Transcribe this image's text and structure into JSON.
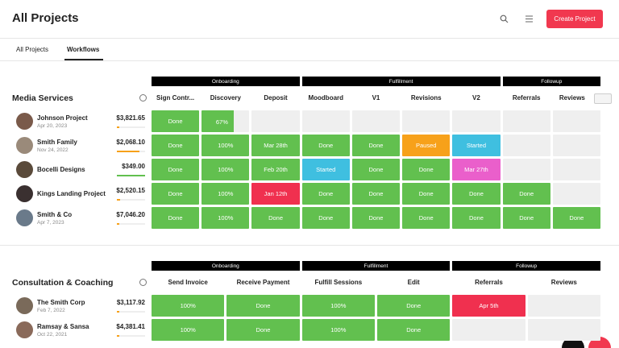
{
  "header": {
    "title": "All Projects",
    "button": "Create Project"
  },
  "tabs": [
    "All Projects",
    "Workflows"
  ],
  "active_tab": 1,
  "sections": [
    {
      "title": "Media Services",
      "groups": [
        {
          "label": "Onboarding",
          "span": 3
        },
        {
          "label": "Fulfillment",
          "span": 4
        },
        {
          "label": "Followup",
          "span": 2
        }
      ],
      "columns": [
        "Sign Contr...",
        "Discovery",
        "Deposit",
        "Moodboard",
        "V1",
        "Revisions",
        "V2",
        "Referrals",
        "Reviews"
      ],
      "rows": [
        {
          "name": "Johnson Project",
          "date": "Apr 20, 2023",
          "amount": "$3,821.65",
          "progress": 8,
          "bar": "orange",
          "cells": [
            {
              "text": "Done",
              "status": "done"
            },
            {
              "text": "67%",
              "value": 67,
              "status": "partial"
            },
            {
              "status": "empty"
            },
            {
              "status": "empty"
            },
            {
              "status": "empty"
            },
            {
              "status": "empty"
            },
            {
              "status": "empty"
            },
            {
              "status": "empty"
            },
            {
              "status": "empty"
            }
          ]
        },
        {
          "name": "Smith Family",
          "date": "Nov 24, 2022",
          "amount": "$2,068.10",
          "progress": 80,
          "bar": "orange",
          "cells": [
            {
              "text": "Done",
              "status": "done"
            },
            {
              "text": "100%",
              "status": "done"
            },
            {
              "text": "Mar 28th",
              "status": "done"
            },
            {
              "text": "Done",
              "status": "done"
            },
            {
              "text": "Done",
              "status": "done"
            },
            {
              "text": "Paused",
              "status": "paused"
            },
            {
              "text": "Started",
              "status": "started"
            },
            {
              "status": "empty"
            },
            {
              "status": "empty"
            }
          ]
        },
        {
          "name": "Bocelli Designs",
          "date": null,
          "amount": "$349.00",
          "progress": 100,
          "bar": "green",
          "cells": [
            {
              "text": "Done",
              "status": "done"
            },
            {
              "text": "100%",
              "status": "done"
            },
            {
              "text": "Feb 20th",
              "status": "done"
            },
            {
              "text": "Started",
              "status": "started"
            },
            {
              "text": "Done",
              "status": "done"
            },
            {
              "text": "Done",
              "status": "done"
            },
            {
              "text": "Mar 27th",
              "status": "scheduled"
            },
            {
              "status": "empty"
            },
            {
              "status": "empty"
            }
          ]
        },
        {
          "name": "Kings Landing Project",
          "date": null,
          "amount": "$2,520.15",
          "progress": 10,
          "bar": "orange",
          "cells": [
            {
              "text": "Done",
              "status": "done"
            },
            {
              "text": "100%",
              "status": "done"
            },
            {
              "text": "Jan 12th",
              "status": "overdue"
            },
            {
              "text": "Done",
              "status": "done"
            },
            {
              "text": "Done",
              "status": "done"
            },
            {
              "text": "Done",
              "status": "done"
            },
            {
              "text": "Done",
              "status": "done"
            },
            {
              "text": "Done",
              "status": "done"
            },
            {
              "status": "empty"
            }
          ]
        },
        {
          "name": "Smith & Co",
          "date": "Apr 7, 2023",
          "amount": "$7,046.20",
          "progress": 8,
          "bar": "orange",
          "cells": [
            {
              "text": "Done",
              "status": "done"
            },
            {
              "text": "100%",
              "status": "done"
            },
            {
              "text": "Done",
              "status": "done"
            },
            {
              "text": "Done",
              "status": "done"
            },
            {
              "text": "Done",
              "status": "done"
            },
            {
              "text": "Done",
              "status": "done"
            },
            {
              "text": "Done",
              "status": "done"
            },
            {
              "text": "Done",
              "status": "done"
            },
            {
              "text": "Done",
              "status": "done"
            }
          ]
        }
      ]
    },
    {
      "title": "Consultation & Coaching",
      "groups": [
        {
          "label": "Onboarding",
          "span": 2
        },
        {
          "label": "Fulfillment",
          "span": 2
        },
        {
          "label": "Followup",
          "span": 2
        }
      ],
      "columns": [
        "Send Invoice",
        "Receive Payment",
        "Fulfill Sessions",
        "Edit",
        "Referrals",
        "Reviews"
      ],
      "rows": [
        {
          "name": "The Smith Corp",
          "date": "Feb 7, 2022",
          "amount": "$3,117.92",
          "progress": 8,
          "bar": "orange",
          "cells": [
            {
              "text": "100%",
              "status": "done"
            },
            {
              "text": "Done",
              "status": "done"
            },
            {
              "text": "100%",
              "status": "done"
            },
            {
              "text": "Done",
              "status": "done"
            },
            {
              "text": "Apr 5th",
              "status": "overdue"
            },
            {
              "status": "empty"
            }
          ]
        },
        {
          "name": "Ramsay & Sansa",
          "date": "Oct 22, 2021",
          "amount": "$4,381.41",
          "progress": 8,
          "bar": "orange",
          "cells": [
            {
              "text": "100%",
              "status": "done"
            },
            {
              "text": "Done",
              "status": "done"
            },
            {
              "text": "100%",
              "status": "done"
            },
            {
              "text": "Done",
              "status": "done"
            },
            {
              "status": "empty"
            },
            {
              "status": "empty"
            }
          ]
        }
      ]
    }
  ]
}
